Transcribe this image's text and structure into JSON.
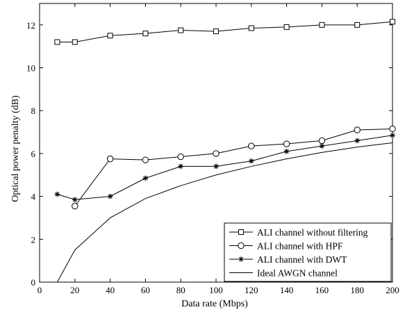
{
  "chart_data": {
    "type": "line",
    "title": "",
    "xlabel": "Data rate (Mbps)",
    "ylabel": "Optical power penalty (dB)",
    "xlim": [
      0,
      200
    ],
    "ylim": [
      0,
      13
    ],
    "xticks": [
      0,
      20,
      40,
      60,
      80,
      100,
      120,
      140,
      160,
      180,
      200
    ],
    "yticks": [
      0,
      2,
      4,
      6,
      8,
      10,
      12
    ],
    "grid": false,
    "legend_position": "bottom-right",
    "series": [
      {
        "name": "ALI channel without filtering",
        "marker": "square",
        "x": [
          10,
          20,
          40,
          60,
          80,
          100,
          120,
          140,
          160,
          180,
          200
        ],
        "y": [
          11.2,
          11.2,
          11.5,
          11.6,
          11.75,
          11.7,
          11.85,
          11.9,
          12.0,
          12.0,
          12.15
        ]
      },
      {
        "name": "ALI channel with HPF",
        "marker": "circle",
        "x": [
          20,
          40,
          60,
          80,
          100,
          120,
          140,
          160,
          180,
          200
        ],
        "y": [
          3.55,
          5.75,
          5.7,
          5.85,
          6.0,
          6.35,
          6.45,
          6.6,
          7.1,
          7.15
        ]
      },
      {
        "name": "ALI channel with DWT",
        "marker": "star",
        "x": [
          10,
          20,
          40,
          60,
          80,
          100,
          120,
          140,
          160,
          180,
          200
        ],
        "y": [
          4.1,
          3.85,
          4.0,
          4.85,
          5.4,
          5.4,
          5.65,
          6.1,
          6.35,
          6.6,
          6.85
        ]
      },
      {
        "name": "Ideal AWGN channel",
        "marker": "none",
        "x": [
          10,
          20,
          40,
          60,
          80,
          100,
          120,
          140,
          160,
          180,
          200
        ],
        "y": [
          0.0,
          1.5,
          3.0,
          3.9,
          4.5,
          5.0,
          5.4,
          5.75,
          6.05,
          6.3,
          6.5
        ]
      }
    ]
  }
}
